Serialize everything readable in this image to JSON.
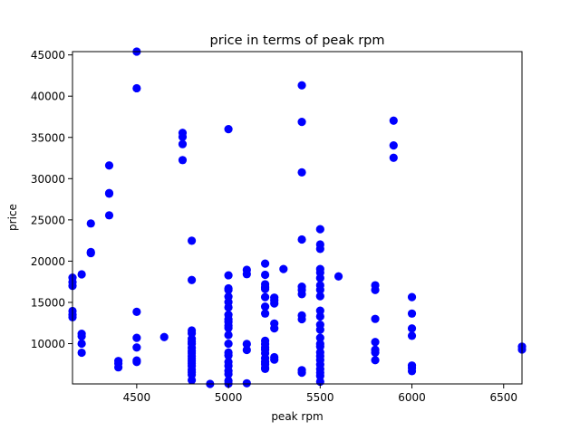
{
  "chart_data": {
    "type": "scatter",
    "title": "price in terms of peak rpm",
    "xlabel": "peak rpm",
    "ylabel": "price",
    "xlim": [
      4150,
      6600
    ],
    "ylim": [
      5118,
      45400
    ],
    "xticks": [
      4500,
      5000,
      5500,
      6000,
      6500
    ],
    "yticks": [
      10000,
      15000,
      20000,
      25000,
      30000,
      35000,
      40000,
      45000
    ],
    "grid": false,
    "marker_color": "#0000ff",
    "points": [
      {
        "x": 4150,
        "y": 13495
      },
      {
        "x": 4150,
        "y": 13950
      },
      {
        "x": 4150,
        "y": 13200
      },
      {
        "x": 4150,
        "y": 17450
      },
      {
        "x": 4150,
        "y": 18000
      },
      {
        "x": 4150,
        "y": 17000
      },
      {
        "x": 4200,
        "y": 18400
      },
      {
        "x": 4200,
        "y": 11200
      },
      {
        "x": 4200,
        "y": 10900
      },
      {
        "x": 4200,
        "y": 10000
      },
      {
        "x": 4200,
        "y": 8900
      },
      {
        "x": 4250,
        "y": 24565
      },
      {
        "x": 4250,
        "y": 21105
      },
      {
        "x": 4250,
        "y": 20970
      },
      {
        "x": 4350,
        "y": 31600
      },
      {
        "x": 4350,
        "y": 28248
      },
      {
        "x": 4350,
        "y": 28176
      },
      {
        "x": 4350,
        "y": 25552
      },
      {
        "x": 4400,
        "y": 7898
      },
      {
        "x": 4400,
        "y": 7603
      },
      {
        "x": 4400,
        "y": 7126
      },
      {
        "x": 4500,
        "y": 45400
      },
      {
        "x": 4500,
        "y": 40960
      },
      {
        "x": 4500,
        "y": 13860
      },
      {
        "x": 4500,
        "y": 10698
      },
      {
        "x": 4500,
        "y": 9538
      },
      {
        "x": 4500,
        "y": 7957
      },
      {
        "x": 4500,
        "y": 7775
      },
      {
        "x": 4650,
        "y": 10795
      },
      {
        "x": 4750,
        "y": 35550
      },
      {
        "x": 4750,
        "y": 35056
      },
      {
        "x": 4750,
        "y": 34184
      },
      {
        "x": 4750,
        "y": 32250
      },
      {
        "x": 4800,
        "y": 22470
      },
      {
        "x": 4800,
        "y": 17710
      },
      {
        "x": 4800,
        "y": 11595
      },
      {
        "x": 4800,
        "y": 11245
      },
      {
        "x": 4800,
        "y": 10595
      },
      {
        "x": 4800,
        "y": 10245
      },
      {
        "x": 4800,
        "y": 9995
      },
      {
        "x": 4800,
        "y": 9495
      },
      {
        "x": 4800,
        "y": 9095
      },
      {
        "x": 4800,
        "y": 8845
      },
      {
        "x": 4800,
        "y": 8495
      },
      {
        "x": 4800,
        "y": 8195
      },
      {
        "x": 4800,
        "y": 7895
      },
      {
        "x": 4800,
        "y": 7609
      },
      {
        "x": 4800,
        "y": 7299
      },
      {
        "x": 4800,
        "y": 6849
      },
      {
        "x": 4800,
        "y": 6529
      },
      {
        "x": 4800,
        "y": 6229
      },
      {
        "x": 4800,
        "y": 5572
      },
      {
        "x": 4900,
        "y": 5118
      },
      {
        "x": 5000,
        "y": 36000
      },
      {
        "x": 5000,
        "y": 18280
      },
      {
        "x": 5000,
        "y": 16695
      },
      {
        "x": 5000,
        "y": 16500
      },
      {
        "x": 5000,
        "y": 15690
      },
      {
        "x": 5000,
        "y": 15040
      },
      {
        "x": 5000,
        "y": 14399
      },
      {
        "x": 5000,
        "y": 13499
      },
      {
        "x": 5000,
        "y": 12945
      },
      {
        "x": 5000,
        "y": 12629
      },
      {
        "x": 5000,
        "y": 12170
      },
      {
        "x": 5000,
        "y": 11900
      },
      {
        "x": 5000,
        "y": 11048
      },
      {
        "x": 5000,
        "y": 9989
      },
      {
        "x": 5000,
        "y": 8921
      },
      {
        "x": 5000,
        "y": 8558
      },
      {
        "x": 5000,
        "y": 7775
      },
      {
        "x": 5000,
        "y": 7295
      },
      {
        "x": 5000,
        "y": 6692
      },
      {
        "x": 5000,
        "y": 6295
      },
      {
        "x": 5000,
        "y": 5499
      },
      {
        "x": 5000,
        "y": 5151
      },
      {
        "x": 5100,
        "y": 18950
      },
      {
        "x": 5100,
        "y": 18420
      },
      {
        "x": 5100,
        "y": 9960
      },
      {
        "x": 5100,
        "y": 9233
      },
      {
        "x": 5100,
        "y": 5195
      },
      {
        "x": 5200,
        "y": 19699
      },
      {
        "x": 5200,
        "y": 18344
      },
      {
        "x": 5200,
        "y": 17199
      },
      {
        "x": 5200,
        "y": 16845
      },
      {
        "x": 5200,
        "y": 16630
      },
      {
        "x": 5200,
        "y": 15645
      },
      {
        "x": 5200,
        "y": 14489
      },
      {
        "x": 5200,
        "y": 13645
      },
      {
        "x": 5200,
        "y": 10345
      },
      {
        "x": 5200,
        "y": 9960
      },
      {
        "x": 5200,
        "y": 9549
      },
      {
        "x": 5200,
        "y": 9279
      },
      {
        "x": 5200,
        "y": 8845
      },
      {
        "x": 5200,
        "y": 8238
      },
      {
        "x": 5200,
        "y": 7799
      },
      {
        "x": 5200,
        "y": 7499
      },
      {
        "x": 5200,
        "y": 7099
      },
      {
        "x": 5200,
        "y": 6938
      },
      {
        "x": 5250,
        "y": 15580
      },
      {
        "x": 5250,
        "y": 15250
      },
      {
        "x": 5250,
        "y": 14869
      },
      {
        "x": 5250,
        "y": 12440
      },
      {
        "x": 5250,
        "y": 11850
      },
      {
        "x": 5250,
        "y": 8358
      },
      {
        "x": 5250,
        "y": 8058
      },
      {
        "x": 5300,
        "y": 19045
      },
      {
        "x": 5400,
        "y": 41315
      },
      {
        "x": 5400,
        "y": 36880
      },
      {
        "x": 5400,
        "y": 30760
      },
      {
        "x": 5400,
        "y": 22625
      },
      {
        "x": 5400,
        "y": 16900
      },
      {
        "x": 5400,
        "y": 16500
      },
      {
        "x": 5400,
        "y": 15998
      },
      {
        "x": 5400,
        "y": 13415
      },
      {
        "x": 5400,
        "y": 12964
      },
      {
        "x": 5400,
        "y": 6785
      },
      {
        "x": 5400,
        "y": 6479
      },
      {
        "x": 5500,
        "y": 23875
      },
      {
        "x": 5500,
        "y": 22018
      },
      {
        "x": 5500,
        "y": 21485
      },
      {
        "x": 5500,
        "y": 19045
      },
      {
        "x": 5500,
        "y": 18620
      },
      {
        "x": 5500,
        "y": 17950
      },
      {
        "x": 5500,
        "y": 17075
      },
      {
        "x": 5500,
        "y": 16515
      },
      {
        "x": 5500,
        "y": 15750
      },
      {
        "x": 5500,
        "y": 14000
      },
      {
        "x": 5500,
        "y": 13295
      },
      {
        "x": 5500,
        "y": 12290
      },
      {
        "x": 5500,
        "y": 11694
      },
      {
        "x": 5500,
        "y": 10698
      },
      {
        "x": 5500,
        "y": 9980
      },
      {
        "x": 5500,
        "y": 9639
      },
      {
        "x": 5500,
        "y": 8949
      },
      {
        "x": 5500,
        "y": 8495
      },
      {
        "x": 5500,
        "y": 8013
      },
      {
        "x": 5500,
        "y": 7463
      },
      {
        "x": 5500,
        "y": 6918
      },
      {
        "x": 5500,
        "y": 6488
      },
      {
        "x": 5500,
        "y": 6095
      },
      {
        "x": 5500,
        "y": 5389
      },
      {
        "x": 5600,
        "y": 18150
      },
      {
        "x": 5800,
        "y": 17075
      },
      {
        "x": 5800,
        "y": 16500
      },
      {
        "x": 5800,
        "y": 13000
      },
      {
        "x": 5800,
        "y": 10198
      },
      {
        "x": 5800,
        "y": 9258
      },
      {
        "x": 5800,
        "y": 8921
      },
      {
        "x": 5800,
        "y": 7995
      },
      {
        "x": 5900,
        "y": 37028
      },
      {
        "x": 5900,
        "y": 34028
      },
      {
        "x": 5900,
        "y": 32528
      },
      {
        "x": 6000,
        "y": 15645
      },
      {
        "x": 6000,
        "y": 13645
      },
      {
        "x": 6000,
        "y": 11845
      },
      {
        "x": 6000,
        "y": 10945
      },
      {
        "x": 6000,
        "y": 7349
      },
      {
        "x": 6000,
        "y": 7053
      },
      {
        "x": 6000,
        "y": 6669
      },
      {
        "x": 6600,
        "y": 9639
      },
      {
        "x": 6600,
        "y": 9295
      }
    ]
  }
}
